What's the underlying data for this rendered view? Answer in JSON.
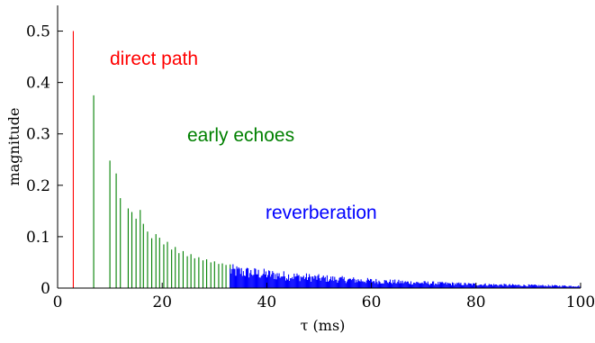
{
  "chart_data": {
    "type": "bar",
    "title": "",
    "xlabel": "τ (ms)",
    "ylabel": "magnitude",
    "xlim": [
      0,
      100
    ],
    "ylim": [
      0,
      0.55
    ],
    "xticks": [
      0,
      20,
      40,
      60,
      80,
      100
    ],
    "yticks": [
      0,
      0.1,
      0.2,
      0.3,
      0.4,
      0.5
    ],
    "grid": false,
    "series": [
      {
        "name": "direct path",
        "color": "#ff0000",
        "points": [
          [
            3,
            0.5
          ]
        ]
      },
      {
        "name": "early echoes",
        "color": "#008000",
        "points": [
          [
            6.9,
            0.375
          ],
          [
            10.0,
            0.248
          ],
          [
            11.2,
            0.223
          ],
          [
            12.0,
            0.175
          ],
          [
            13.5,
            0.155
          ],
          [
            14.2,
            0.148
          ],
          [
            15.0,
            0.135
          ],
          [
            15.8,
            0.152
          ],
          [
            16.4,
            0.125
          ],
          [
            17.2,
            0.11
          ],
          [
            18.0,
            0.097
          ],
          [
            18.8,
            0.105
          ],
          [
            19.5,
            0.098
          ],
          [
            20.3,
            0.085
          ],
          [
            21.0,
            0.09
          ],
          [
            21.8,
            0.075
          ],
          [
            22.5,
            0.08
          ],
          [
            23.2,
            0.068
          ],
          [
            24.0,
            0.072
          ],
          [
            24.8,
            0.062
          ],
          [
            25.5,
            0.066
          ],
          [
            26.2,
            0.058
          ],
          [
            27.0,
            0.06
          ],
          [
            27.8,
            0.054
          ],
          [
            28.5,
            0.056
          ],
          [
            29.3,
            0.05
          ],
          [
            30.0,
            0.052
          ],
          [
            30.8,
            0.047
          ],
          [
            31.5,
            0.048
          ],
          [
            32.2,
            0.045
          ],
          [
            33.0,
            0.046
          ]
        ]
      },
      {
        "name": "reverberation",
        "color": "#0000ff",
        "decay_start_ms": 33,
        "decay_end_ms": 100,
        "approx_magnitude_at_start": 0.045,
        "approx_magnitude_at_end": 0.005
      }
    ],
    "annotations": [
      {
        "text": "direct path",
        "color": "#ff0000"
      },
      {
        "text": "early echoes",
        "color": "#008000"
      },
      {
        "text": "reverberation",
        "color": "#0000ff"
      }
    ]
  }
}
